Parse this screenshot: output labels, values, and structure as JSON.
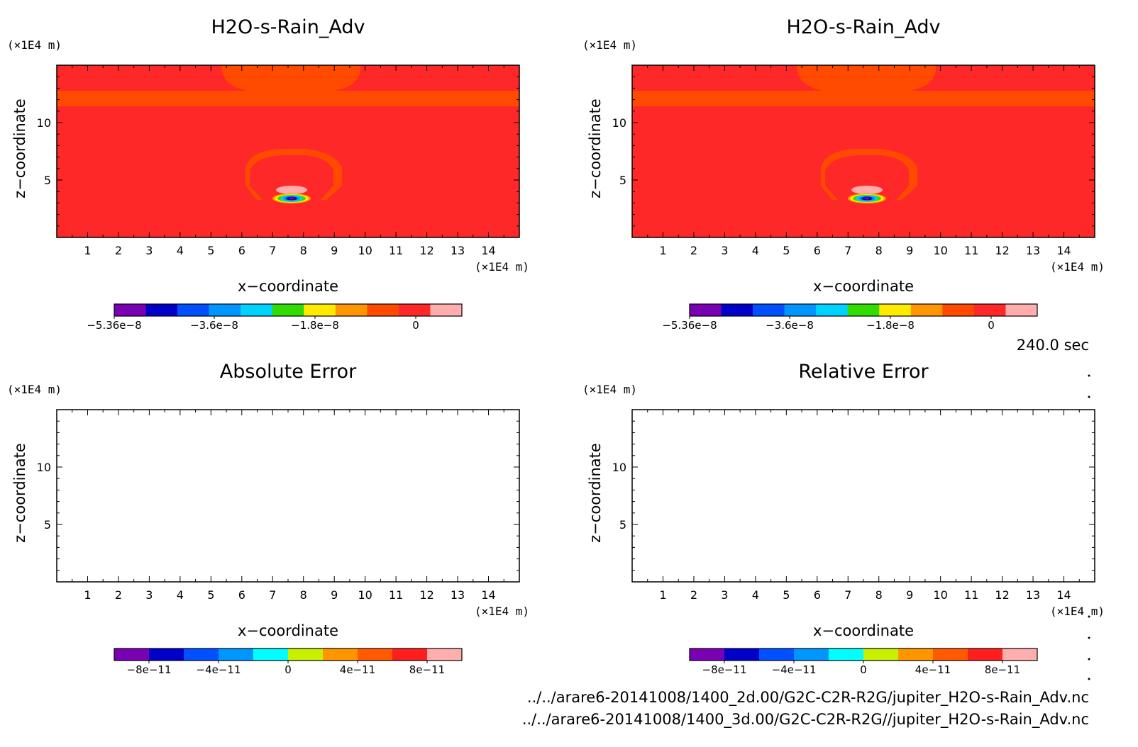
{
  "colors": {
    "field_background": "#ff2828",
    "band": "#ff4a00",
    "anomaly_pink": "#ffaeae"
  },
  "panels": [
    {
      "id": "top-left",
      "title": "H2O-s-Rain_Adv",
      "y_unit": "(×1E4 m)",
      "x_unit": "(×1E4 m)",
      "xlabel": "x−coordinate",
      "ylabel": "z−coordinate",
      "x_ticks": [
        "1",
        "2",
        "3",
        "4",
        "5",
        "6",
        "7",
        "8",
        "9",
        "10",
        "11",
        "12",
        "13",
        "14"
      ],
      "y_ticks": [
        "5",
        "10"
      ],
      "filled": true,
      "colorbar": {
        "colors": [
          "#7a00b4",
          "#0000c8",
          "#0050ff",
          "#0096ff",
          "#00d2ff",
          "#32dc00",
          "#ffeb00",
          "#ff9600",
          "#ff4a00",
          "#ff2828",
          "#ffaeae"
        ],
        "labels": [
          "−5.36e−8",
          "−3.6e−8",
          "−1.8e−8",
          "0"
        ]
      }
    },
    {
      "id": "top-right",
      "title": "H2O-s-Rain_Adv",
      "y_unit": "(×1E4 m)",
      "x_unit": "(×1E4 m)",
      "xlabel": "x−coordinate",
      "ylabel": "z−coordinate",
      "x_ticks": [
        "1",
        "2",
        "3",
        "4",
        "5",
        "6",
        "7",
        "8",
        "9",
        "10",
        "11",
        "12",
        "13",
        "14"
      ],
      "y_ticks": [
        "5",
        "10"
      ],
      "filled": true,
      "colorbar": {
        "colors": [
          "#7a00b4",
          "#0000c8",
          "#0050ff",
          "#0096ff",
          "#00d2ff",
          "#32dc00",
          "#ffeb00",
          "#ff9600",
          "#ff4a00",
          "#ff2828",
          "#ffaeae"
        ],
        "labels": [
          "−5.36e−8",
          "−3.6e−8",
          "−1.8e−8",
          "0"
        ]
      }
    },
    {
      "id": "bottom-left",
      "title": "Absolute Error",
      "y_unit": "(×1E4 m)",
      "x_unit": "(×1E4 m)",
      "xlabel": "x−coordinate",
      "ylabel": "z−coordinate",
      "x_ticks": [
        "1",
        "2",
        "3",
        "4",
        "5",
        "6",
        "7",
        "8",
        "9",
        "10",
        "11",
        "12",
        "13",
        "14"
      ],
      "y_ticks": [
        "5",
        "10"
      ],
      "filled": false,
      "colorbar": {
        "colors": [
          "#7a00b4",
          "#0000c8",
          "#0050ff",
          "#0096ff",
          "#00ffff",
          "#c8f000",
          "#ff9600",
          "#ff5a00",
          "#ff1e1e",
          "#ffaeae"
        ],
        "labels": [
          "−8e−11",
          "−4e−11",
          "0",
          "4e−11",
          "8e−11"
        ]
      }
    },
    {
      "id": "bottom-right",
      "title": "Relative Error",
      "y_unit": "(×1E4 m)",
      "x_unit": "(×1E4 m)",
      "xlabel": "x−coordinate",
      "ylabel": "z−coordinate",
      "x_ticks": [
        "1",
        "2",
        "3",
        "4",
        "5",
        "6",
        "7",
        "8",
        "9",
        "10",
        "11",
        "12",
        "13",
        "14"
      ],
      "y_ticks": [
        "5",
        "10"
      ],
      "filled": false,
      "colorbar": {
        "colors": [
          "#7a00b4",
          "#0000c8",
          "#0050ff",
          "#0096ff",
          "#00ffff",
          "#c8f000",
          "#ff9600",
          "#ff5a00",
          "#ff1e1e",
          "#ffaeae"
        ],
        "labels": [
          "−8e−11",
          "−4e−11",
          "0",
          "4e−11",
          "8e−11"
        ]
      }
    }
  ],
  "time_label": "240.0 sec",
  "file_paths": [
    "../../arare6-20141008/1400_2d.00/G2C-C2R-R2G/jupiter_H2O-s-Rain_Adv.nc",
    "../../arare6-20141008/1400_3d.00/G2C-C2R-R2G//jupiter_H2O-s-Rain_Adv.nc"
  ],
  "chart_data": [
    {
      "type": "heatmap",
      "title": "H2O-s-Rain_Adv",
      "xlabel": "x−coordinate",
      "ylabel": "z−coordinate",
      "x_unit": "(×1E4 m)",
      "y_unit": "(×1E4 m)",
      "xlim": [
        0,
        15
      ],
      "ylim": [
        0,
        15
      ],
      "x_ticks": [
        1,
        2,
        3,
        4,
        5,
        6,
        7,
        8,
        9,
        10,
        11,
        12,
        13,
        14
      ],
      "y_ticks": [
        5,
        10
      ],
      "colorbar_ticks": [
        -5.36e-08,
        -3.6e-08,
        -1.8e-08,
        0
      ]
    },
    {
      "type": "heatmap",
      "title": "H2O-s-Rain_Adv",
      "xlabel": "x−coordinate",
      "ylabel": "z−coordinate",
      "x_unit": "(×1E4 m)",
      "y_unit": "(×1E4 m)",
      "xlim": [
        0,
        15
      ],
      "ylim": [
        0,
        15
      ],
      "x_ticks": [
        1,
        2,
        3,
        4,
        5,
        6,
        7,
        8,
        9,
        10,
        11,
        12,
        13,
        14
      ],
      "y_ticks": [
        5,
        10
      ],
      "colorbar_ticks": [
        -5.36e-08,
        -3.6e-08,
        -1.8e-08,
        0
      ]
    },
    {
      "type": "heatmap",
      "title": "Absolute Error",
      "xlabel": "x−coordinate",
      "ylabel": "z−coordinate",
      "x_unit": "(×1E4 m)",
      "y_unit": "(×1E4 m)",
      "xlim": [
        0,
        15
      ],
      "ylim": [
        0,
        15
      ],
      "x_ticks": [
        1,
        2,
        3,
        4,
        5,
        6,
        7,
        8,
        9,
        10,
        11,
        12,
        13,
        14
      ],
      "y_ticks": [
        5,
        10
      ],
      "colorbar_ticks": [
        -8e-11,
        -4e-11,
        0,
        4e-11,
        8e-11
      ]
    },
    {
      "type": "heatmap",
      "title": "Relative Error",
      "xlabel": "x−coordinate",
      "ylabel": "z−coordinate",
      "x_unit": "(×1E4 m)",
      "y_unit": "(×1E4 m)",
      "xlim": [
        0,
        15
      ],
      "ylim": [
        0,
        15
      ],
      "x_ticks": [
        1,
        2,
        3,
        4,
        5,
        6,
        7,
        8,
        9,
        10,
        11,
        12,
        13,
        14
      ],
      "y_ticks": [
        5,
        10
      ],
      "colorbar_ticks": [
        -8e-11,
        -4e-11,
        0,
        4e-11,
        8e-11
      ]
    }
  ]
}
